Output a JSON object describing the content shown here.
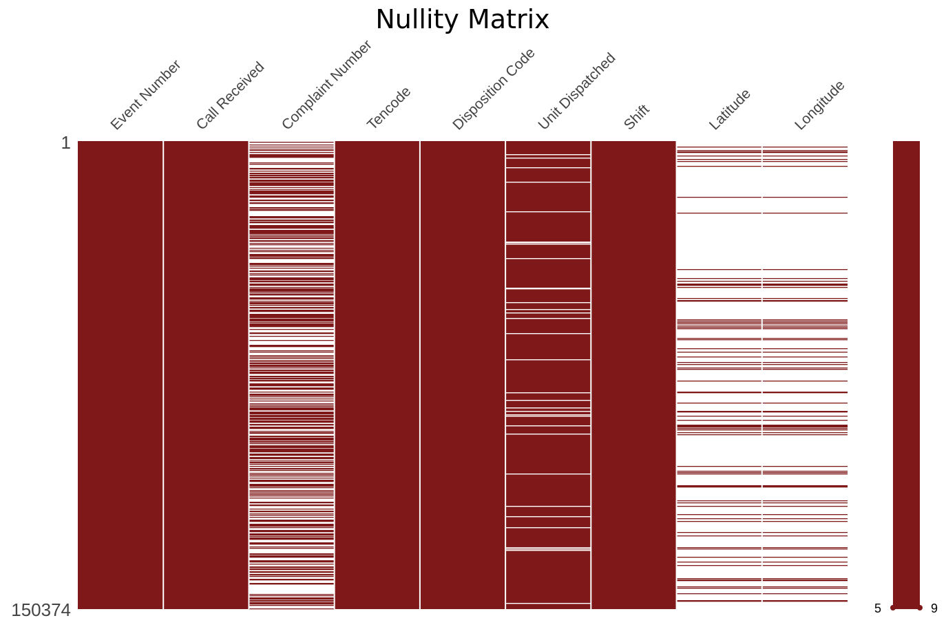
{
  "chart_data": {
    "type": "heatmap",
    "title": "Nullity Matrix",
    "columns": [
      "Event Number",
      "Call Received",
      "Complaint Number",
      "Tencode",
      "Disposition Code",
      "Unit Dispatched",
      "Shift",
      "Latitude",
      "Longitude"
    ],
    "row_range": [
      1,
      150374
    ],
    "row_labels": {
      "top": "1",
      "bottom": "150374"
    },
    "filled_color": "#7f1818",
    "missing_color": "#ffffff",
    "completeness": [
      1.0,
      1.0,
      0.5,
      1.0,
      1.0,
      0.86,
      1.0,
      0.12,
      0.12
    ],
    "sparkline": {
      "min_label": "5",
      "max_label": "9",
      "min": 5,
      "max": 9
    }
  }
}
